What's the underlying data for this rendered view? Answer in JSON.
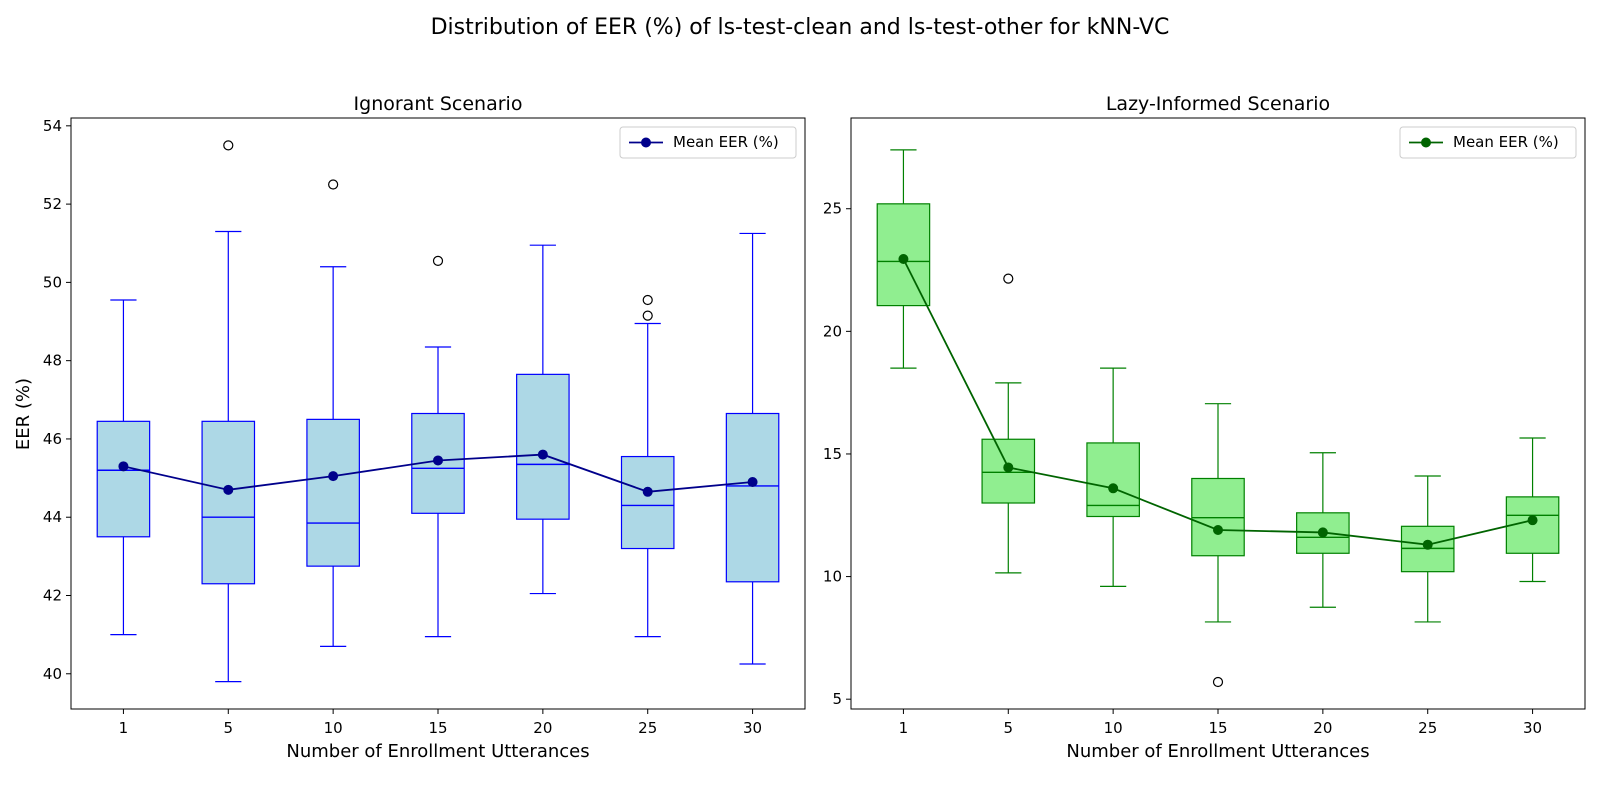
{
  "suptitle": "Distribution of EER (%) of ls-test-clean and ls-test-other for kNN-VC",
  "chart_data": [
    {
      "type": "box",
      "title": "Ignorant Scenario",
      "xlabel": "Number of Enrollment Utterances",
      "ylabel": "EER (%)",
      "categories": [
        "1",
        "5",
        "10",
        "15",
        "20",
        "25",
        "30"
      ],
      "ylim": [
        39.1,
        54.2
      ],
      "yticks": [
        40,
        42,
        44,
        46,
        48,
        50,
        52,
        54
      ],
      "box_color": "#0000ff",
      "fill_color": "#add8e6",
      "mean_color": "#00008b",
      "legend": {
        "label": "Mean EER (%)",
        "position": "upper right"
      },
      "boxes": [
        {
          "whislo": 41.0,
          "q1": 43.5,
          "med": 45.2,
          "q3": 46.45,
          "whishi": 49.55,
          "fliers": []
        },
        {
          "whislo": 39.8,
          "q1": 42.3,
          "med": 44.0,
          "q3": 46.45,
          "whishi": 51.3,
          "fliers": [
            53.5
          ]
        },
        {
          "whislo": 40.7,
          "q1": 42.75,
          "med": 43.85,
          "q3": 46.5,
          "whishi": 50.4,
          "fliers": [
            52.5
          ]
        },
        {
          "whislo": 40.95,
          "q1": 44.1,
          "med": 45.25,
          "q3": 46.65,
          "whishi": 48.35,
          "fliers": [
            50.55
          ]
        },
        {
          "whislo": 42.05,
          "q1": 43.95,
          "med": 45.35,
          "q3": 47.65,
          "whishi": 50.95,
          "fliers": []
        },
        {
          "whislo": 40.95,
          "q1": 43.2,
          "med": 44.3,
          "q3": 45.55,
          "whishi": 48.95,
          "fliers": [
            49.15,
            49.55
          ]
        },
        {
          "whislo": 40.25,
          "q1": 42.35,
          "med": 44.8,
          "q3": 46.65,
          "whishi": 51.25,
          "fliers": []
        }
      ],
      "means": [
        45.3,
        44.7,
        45.05,
        45.45,
        45.6,
        44.65,
        44.9
      ]
    },
    {
      "type": "box",
      "title": "Lazy-Informed Scenario",
      "xlabel": "Number of Enrollment Utterances",
      "ylabel": "",
      "categories": [
        "1",
        "5",
        "10",
        "15",
        "20",
        "25",
        "30"
      ],
      "ylim": [
        4.6,
        28.7
      ],
      "yticks": [
        5,
        10,
        15,
        20,
        25
      ],
      "box_color": "#008000",
      "fill_color": "#90ee90",
      "mean_color": "#006400",
      "legend": {
        "label": "Mean EER (%)",
        "position": "upper right"
      },
      "boxes": [
        {
          "whislo": 18.5,
          "q1": 21.05,
          "med": 22.85,
          "q3": 25.2,
          "whishi": 27.4,
          "fliers": []
        },
        {
          "whislo": 10.15,
          "q1": 13.0,
          "med": 14.25,
          "q3": 15.6,
          "whishi": 17.9,
          "fliers": [
            22.15
          ]
        },
        {
          "whislo": 9.6,
          "q1": 12.45,
          "med": 12.9,
          "q3": 15.45,
          "whishi": 18.5,
          "fliers": []
        },
        {
          "whislo": 8.15,
          "q1": 10.85,
          "med": 12.4,
          "q3": 14.0,
          "whishi": 17.05,
          "fliers": [
            5.7
          ]
        },
        {
          "whislo": 8.75,
          "q1": 10.95,
          "med": 11.6,
          "q3": 12.6,
          "whishi": 15.05,
          "fliers": []
        },
        {
          "whislo": 8.15,
          "q1": 10.2,
          "med": 11.15,
          "q3": 12.05,
          "whishi": 14.1,
          "fliers": []
        },
        {
          "whislo": 9.8,
          "q1": 10.95,
          "med": 12.5,
          "q3": 13.25,
          "whishi": 15.65,
          "fliers": []
        }
      ],
      "means": [
        22.95,
        14.45,
        13.6,
        11.9,
        11.8,
        11.3,
        12.3
      ]
    }
  ]
}
